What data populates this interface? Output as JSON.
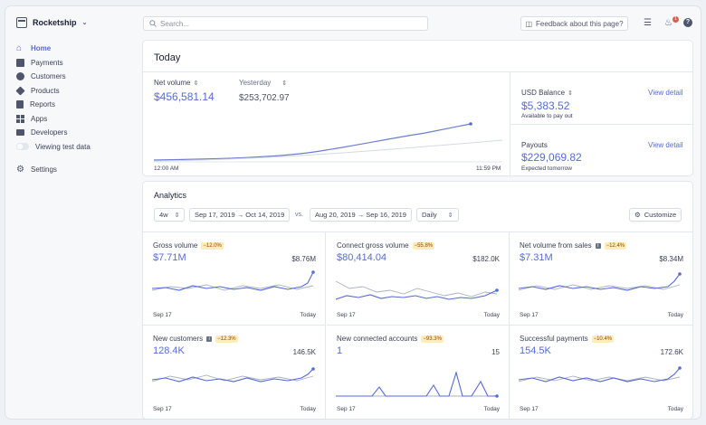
{
  "sidebar": {
    "account_name": "Rocketship",
    "items": [
      {
        "label": "Home",
        "icon": "home-icon"
      },
      {
        "label": "Payments",
        "icon": "payments-icon"
      },
      {
        "label": "Customers",
        "icon": "customers-icon"
      },
      {
        "label": "Products",
        "icon": "products-icon"
      },
      {
        "label": "Reports",
        "icon": "reports-icon"
      },
      {
        "label": "Apps",
        "icon": "apps-icon"
      },
      {
        "label": "Developers",
        "icon": "developers-icon"
      },
      {
        "label": "Viewing test data",
        "icon": "toggle"
      }
    ],
    "settings_label": "Settings",
    "active_color": "#556cd6"
  },
  "topbar": {
    "search_placeholder": "Search...",
    "feedback_label": "Feedback about this page?",
    "notification_count": "1"
  },
  "today": {
    "title": "Today",
    "net_volume_label": "Net volume",
    "net_volume_value": "$456,581.14",
    "yesterday_label": "Yesterday",
    "yesterday_value": "$253,702.97",
    "axis_start": "12:00 AM",
    "axis_end": "11:59 PM",
    "balance_label": "USD Balance",
    "balance_value": "$5,383.52",
    "balance_sub": "Available to pay out",
    "payouts_label": "Payouts",
    "payouts_value": "$229,069.82",
    "payouts_sub": "Expected tomorrow",
    "view_detail": "View detail"
  },
  "analytics": {
    "title": "Analytics",
    "range_select": "4w",
    "date_range": "Sep 17, 2019 → Oct 14, 2019",
    "vs_label": "vs.",
    "compare_range": "Aug 20, 2019 → Sep 16, 2019",
    "interval": "Daily",
    "customize_label": "Customize",
    "cells": [
      {
        "name": "Gross volume",
        "delta": "−12.0%",
        "info": false,
        "value": "$7.71M",
        "prev": "$8.76M",
        "start": "Sep 17",
        "end": "Today"
      },
      {
        "name": "Connect gross volume",
        "delta": "−55.8%",
        "info": false,
        "value": "$80,414.04",
        "prev": "$182.0K",
        "start": "Sep 17",
        "end": "Today"
      },
      {
        "name": "Net volume from sales",
        "delta": "−12.4%",
        "info": true,
        "value": "$7.31M",
        "prev": "$8.34M",
        "start": "Sep 17",
        "end": "Today"
      },
      {
        "name": "New customers",
        "delta": "−12.3%",
        "info": true,
        "value": "128.4K",
        "prev": "146.5K",
        "start": "Sep 17",
        "end": "Today"
      },
      {
        "name": "New connected accounts",
        "delta": "−93.3%",
        "info": false,
        "value": "1",
        "prev": "15",
        "start": "Sep 17",
        "end": "Today"
      },
      {
        "name": "Successful payments",
        "delta": "−10.4%",
        "info": false,
        "value": "154.5K",
        "prev": "172.6K",
        "start": "Sep 17",
        "end": "Today"
      }
    ]
  }
}
